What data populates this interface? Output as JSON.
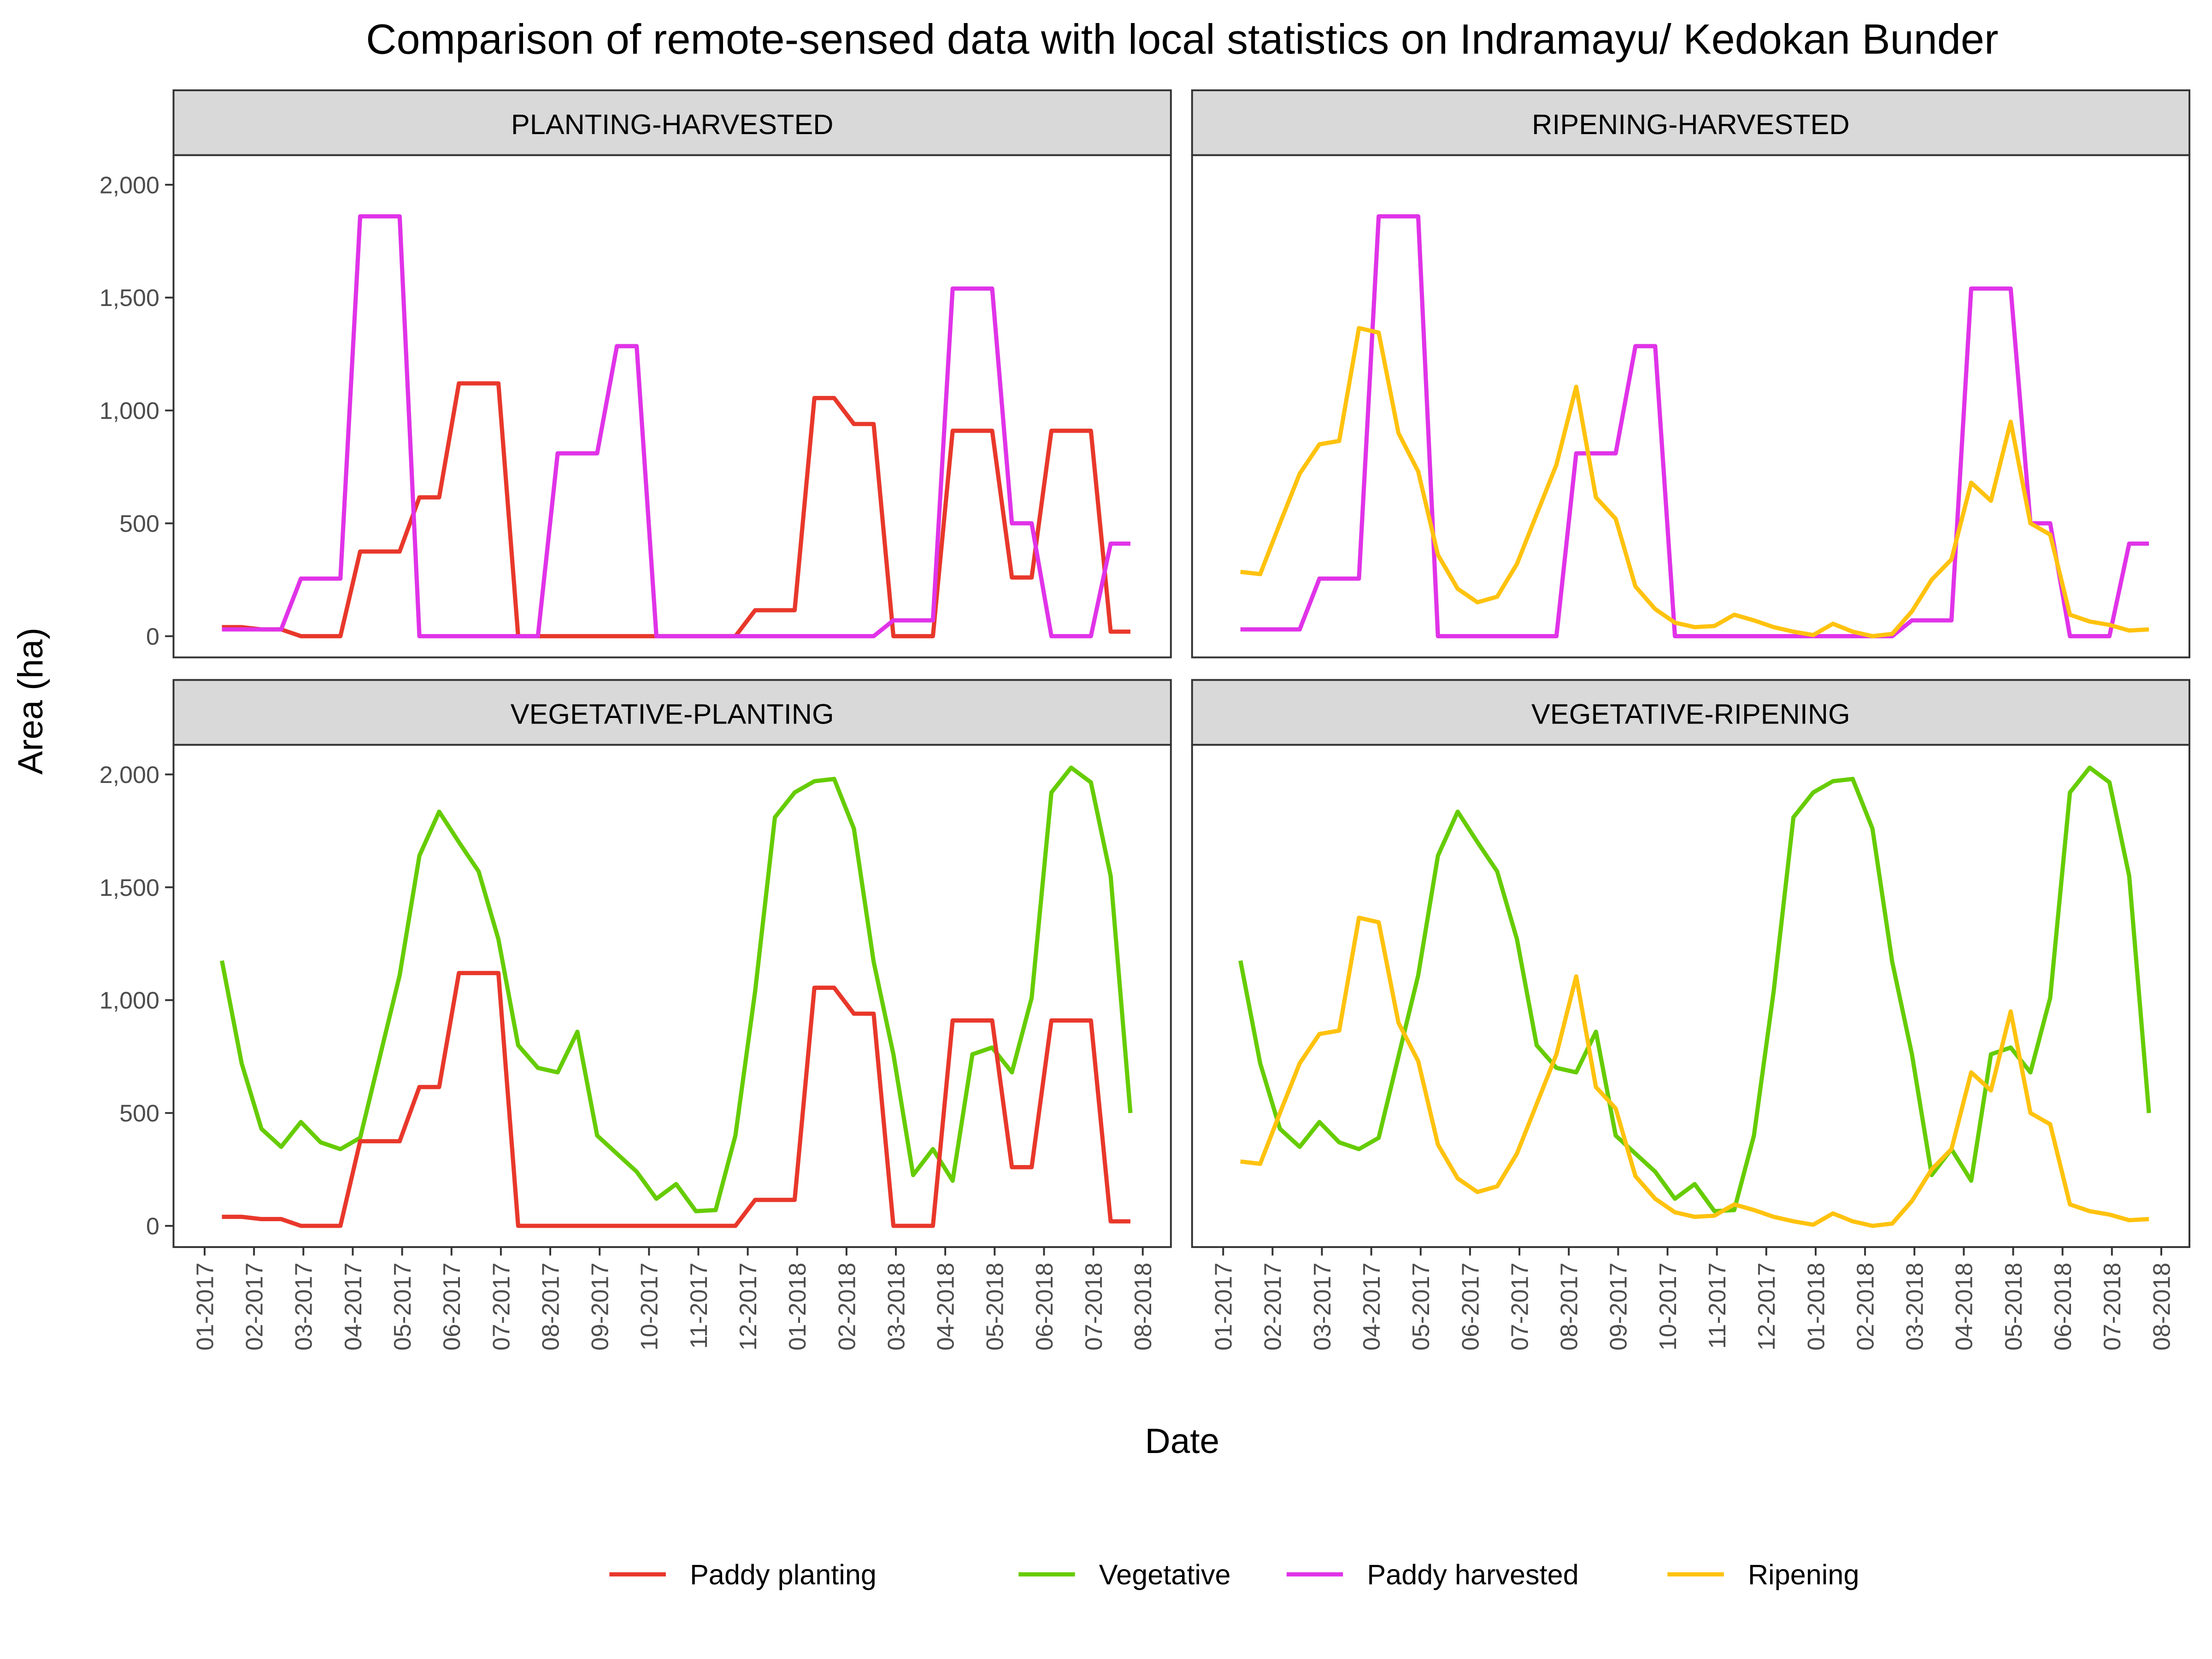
{
  "chart_data": {
    "type": "line",
    "title": "Comparison of remote-sensed data with local statistics on Indramayu/ Kedokan Bunder",
    "x_label": "Date",
    "y_label": "Area (ha)",
    "xlim": [
      -0.63,
      19.57
    ],
    "xticks": [
      {
        "value": 0,
        "label": "01-2017"
      },
      {
        "value": 1,
        "label": "02-2017"
      },
      {
        "value": 2,
        "label": "03-2017"
      },
      {
        "value": 3,
        "label": "04-2017"
      },
      {
        "value": 4,
        "label": "05-2017"
      },
      {
        "value": 5,
        "label": "06-2017"
      },
      {
        "value": 6,
        "label": "07-2017"
      },
      {
        "value": 7,
        "label": "08-2017"
      },
      {
        "value": 8,
        "label": "09-2017"
      },
      {
        "value": 9,
        "label": "10-2017"
      },
      {
        "value": 10,
        "label": "11-2017"
      },
      {
        "value": 11,
        "label": "12-2017"
      },
      {
        "value": 12,
        "label": "01-2018"
      },
      {
        "value": 13,
        "label": "02-2018"
      },
      {
        "value": 14,
        "label": "03-2018"
      },
      {
        "value": 15,
        "label": "04-2018"
      },
      {
        "value": 16,
        "label": "05-2018"
      },
      {
        "value": 17,
        "label": "06-2018"
      },
      {
        "value": 18,
        "label": "07-2018"
      },
      {
        "value": 19,
        "label": "08-2018"
      }
    ],
    "ylim": [
      -94,
      2131
    ],
    "yticks": [
      0,
      {
        "value": 500,
        "label": "500"
      },
      {
        "value": 1000,
        "label": "1,000"
      },
      {
        "value": 1500,
        "label": "1,500"
      },
      {
        "value": 2000,
        "label": "2,000"
      }
    ],
    "x": [
      0.35,
      0.75,
      1.15,
      1.55,
      1.95,
      2.35,
      2.75,
      3.15,
      3.55,
      3.95,
      4.35,
      4.75,
      5.15,
      5.55,
      5.95,
      6.35,
      6.75,
      7.15,
      7.55,
      7.95,
      8.35,
      8.75,
      9.15,
      9.55,
      9.95,
      10.35,
      10.75,
      11.15,
      11.55,
      11.95,
      12.35,
      12.75,
      13.15,
      13.55,
      13.95,
      14.35,
      14.75,
      15.15,
      15.55,
      15.95,
      16.35,
      16.75,
      17.15,
      17.55,
      17.95,
      18.35,
      18.75
    ],
    "series": [
      {
        "name": "Paddy planting",
        "color": "#e8382b",
        "values": [
          40,
          40,
          30,
          30,
          0,
          0,
          0,
          375,
          375,
          375,
          615,
          615,
          1120,
          1120,
          1120,
          0,
          0,
          0,
          0,
          0,
          0,
          0,
          0,
          0,
          0,
          0,
          0,
          115,
          115,
          115,
          1055,
          1055,
          940,
          940,
          0,
          0,
          0,
          910,
          910,
          910,
          260,
          260,
          910,
          910,
          910,
          20,
          20
        ]
      },
      {
        "name": "Vegetative",
        "color": "#66cc00",
        "values": [
          1175,
          720,
          430,
          350,
          460,
          370,
          340,
          390,
          750,
          1110,
          1640,
          1835,
          1700,
          1570,
          1270,
          800,
          700,
          680,
          860,
          400,
          320,
          240,
          120,
          185,
          65,
          70,
          400,
          1040,
          1810,
          1920,
          1970,
          1980,
          1760,
          1170,
          760,
          225,
          340,
          200,
          760,
          790,
          680,
          1010,
          1920,
          2030,
          1965,
          1550,
          500
        ]
      },
      {
        "name": "Paddy harvested",
        "color": "#e033e8",
        "values": [
          30,
          30,
          30,
          30,
          255,
          255,
          255,
          1860,
          1860,
          1860,
          0,
          0,
          0,
          0,
          0,
          0,
          0,
          810,
          810,
          810,
          1285,
          1285,
          0,
          0,
          0,
          0,
          0,
          0,
          0,
          0,
          0,
          0,
          0,
          0,
          70,
          70,
          70,
          1540,
          1540,
          1540,
          500,
          500,
          0,
          0,
          0,
          410,
          410
        ]
      },
      {
        "name": "Ripening",
        "color": "#ffc20e",
        "values": [
          285,
          275,
          500,
          720,
          850,
          865,
          1365,
          1345,
          900,
          730,
          360,
          210,
          150,
          175,
          320,
          540,
          760,
          1105,
          615,
          520,
          220,
          120,
          60,
          40,
          45,
          95,
          70,
          40,
          20,
          5,
          55,
          20,
          0,
          10,
          110,
          250,
          340,
          680,
          600,
          950,
          500,
          450,
          95,
          65,
          50,
          25,
          30
        ]
      }
    ],
    "facets": [
      {
        "title": "PLANTING-HARVESTED",
        "series": [
          0,
          2
        ]
      },
      {
        "title": "RIPENING-HARVESTED",
        "series": [
          2,
          3
        ]
      },
      {
        "title": "VEGETATIVE-PLANTING",
        "series": [
          1,
          0
        ]
      },
      {
        "title": "VEGETATIVE-RIPENING",
        "series": [
          1,
          3
        ]
      }
    ],
    "legend": "bottom"
  }
}
